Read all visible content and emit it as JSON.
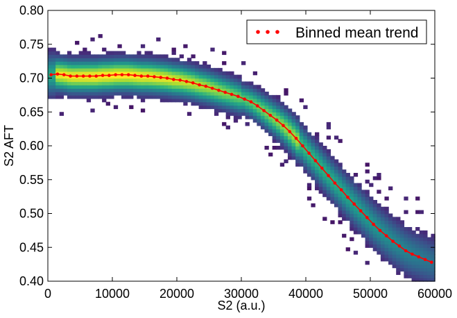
{
  "chart_data": {
    "type": "heatmap",
    "overlay_type": "line",
    "xlabel": "S2 (a.u.)",
    "ylabel": "S2 AFT",
    "xlim": [
      0,
      60000
    ],
    "ylim": [
      0.4,
      0.8
    ],
    "x_ticks": [
      0,
      10000,
      20000,
      30000,
      40000,
      50000,
      60000
    ],
    "y_ticks": [
      0.4,
      0.45,
      0.5,
      0.55,
      0.6,
      0.65,
      0.7,
      0.75,
      0.8
    ],
    "x_tick_labels": [
      "0",
      "10000",
      "20000",
      "30000",
      "40000",
      "50000",
      "60000"
    ],
    "y_tick_labels": [
      "0.40",
      "0.45",
      "0.50",
      "0.55",
      "0.60",
      "0.65",
      "0.70",
      "0.75",
      "0.80"
    ],
    "grid": false,
    "legend": {
      "position": "top-right",
      "entries": [
        "Binned mean trend"
      ]
    },
    "colormap": "viridis",
    "series": [
      {
        "name": "Binned mean trend",
        "color": "#ff0000",
        "x": [
          500,
          1500,
          2500,
          3500,
          4500,
          5500,
          6500,
          7500,
          8500,
          9500,
          10500,
          11500,
          12500,
          13500,
          14500,
          15500,
          16500,
          17500,
          18500,
          19500,
          20500,
          21500,
          22500,
          23500,
          24500,
          25500,
          26500,
          27500,
          28500,
          29500,
          30500,
          31500,
          32500,
          33500,
          34500,
          35500,
          36500,
          37500,
          38500,
          39500,
          40500,
          41500,
          42500,
          43500,
          44500,
          45500,
          46500,
          47500,
          48500,
          49500,
          50500,
          51500,
          52500,
          53500,
          54500,
          55500,
          56500,
          57500,
          58500,
          59500
        ],
        "y": [
          0.705,
          0.706,
          0.705,
          0.703,
          0.703,
          0.703,
          0.703,
          0.703,
          0.704,
          0.704,
          0.705,
          0.705,
          0.705,
          0.704,
          0.703,
          0.703,
          0.702,
          0.701,
          0.7,
          0.698,
          0.697,
          0.695,
          0.693,
          0.69,
          0.688,
          0.685,
          0.682,
          0.679,
          0.676,
          0.673,
          0.669,
          0.665,
          0.659,
          0.652,
          0.645,
          0.638,
          0.63,
          0.621,
          0.611,
          0.6,
          0.589,
          0.578,
          0.567,
          0.556,
          0.545,
          0.535,
          0.524,
          0.514,
          0.504,
          0.494,
          0.484,
          0.475,
          0.467,
          0.459,
          0.452,
          0.445,
          0.44,
          0.436,
          0.432,
          0.428
        ]
      }
    ],
    "colors": {
      "trend": "#ff0000",
      "axis": "#000000",
      "background": "#ffffff"
    }
  }
}
